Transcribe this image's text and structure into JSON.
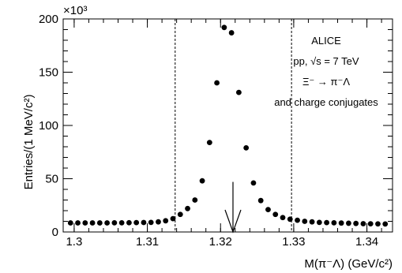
{
  "chart_data": {
    "type": "scatter",
    "x_axis": {
      "label": "M(π⁻Λ) (GeV/c²)",
      "range": [
        1.2985,
        1.3435
      ],
      "ticks": [
        1.3,
        1.31,
        1.32,
        1.33,
        1.34
      ],
      "tick_labels": [
        "1.3",
        "1.31",
        "1.32",
        "1.33",
        "1.34"
      ],
      "minor_step": 0.002
    },
    "y_axis": {
      "label": "Entries/(1 MeV/c²)",
      "range": [
        0,
        200
      ],
      "ticks": [
        0,
        50,
        100,
        150,
        200
      ],
      "tick_labels": [
        "0",
        "50",
        "100",
        "150",
        "200"
      ],
      "multiplier": "×10³",
      "minor_step": 10
    },
    "grid": false,
    "legend": "none",
    "series": [
      {
        "x": [
          1.2995,
          1.3005,
          1.3015,
          1.3025,
          1.3035,
          1.3045,
          1.3055,
          1.3065,
          1.3075,
          1.3085,
          1.3095,
          1.3105,
          1.3115,
          1.3125,
          1.3135,
          1.3145,
          1.3155,
          1.3165,
          1.3175,
          1.3185,
          1.3195,
          1.3205,
          1.3215,
          1.3225,
          1.3235,
          1.3245,
          1.3255,
          1.3265,
          1.3275,
          1.3285,
          1.3295,
          1.3305,
          1.3315,
          1.3325,
          1.3335,
          1.3345,
          1.3355,
          1.3365,
          1.3375,
          1.3385,
          1.3395,
          1.3405,
          1.3415,
          1.3425
        ],
        "y": [
          8.5,
          8.5,
          8.5,
          8.5,
          8.5,
          8.5,
          8.6,
          8.6,
          8.7,
          8.8,
          8.9,
          9.0,
          9.5,
          10.5,
          12.5,
          16.5,
          22.0,
          30.0,
          48.0,
          84.0,
          140.0,
          192.0,
          187.0,
          131.0,
          79.0,
          46.0,
          29.5,
          21.0,
          16.5,
          13.5,
          12.0,
          11.0,
          10.0,
          9.5,
          9.0,
          8.8,
          8.6,
          8.4,
          8.2,
          8.0,
          7.8,
          7.7,
          7.6,
          7.5
        ]
      }
    ],
    "vertical_lines": [
      {
        "x": 1.3138,
        "style": "dashed"
      },
      {
        "x": 1.3297,
        "style": "dashed"
      }
    ],
    "arrow": {
      "x": 1.3217,
      "from_y": 47,
      "to_y": 0
    },
    "annotations": [
      "ALICE",
      "pp, √s = 7 TeV",
      "Ξ⁻ → π⁻Λ",
      "and charge conjugates"
    ]
  }
}
